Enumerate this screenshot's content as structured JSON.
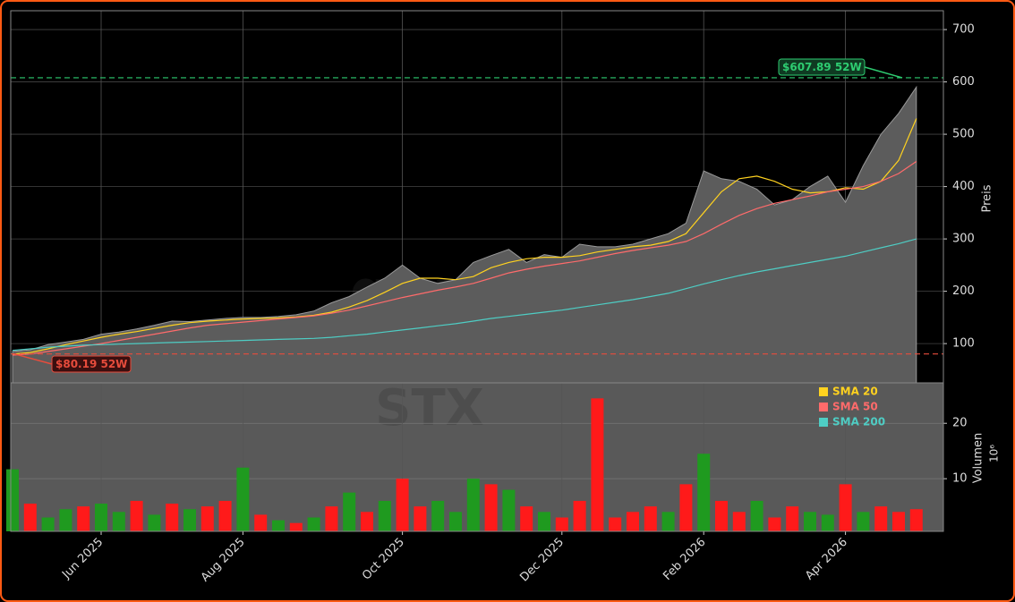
{
  "chart_data": [
    {
      "type": "area",
      "watermark": "gnale.trade",
      "subtitle": "STX",
      "ylabel": "Preis",
      "categories": [
        null,
        null,
        null,
        null,
        null,
        "Jun 2025",
        null,
        null,
        null,
        null,
        null,
        null,
        null,
        "Aug 2025",
        null,
        null,
        null,
        null,
        null,
        null,
        null,
        null,
        "Oct 2025",
        null,
        null,
        null,
        null,
        null,
        null,
        null,
        null,
        "Dec 2025",
        null,
        null,
        null,
        null,
        null,
        null,
        null,
        "Feb 2026",
        null,
        null,
        null,
        null,
        null,
        null,
        null,
        "Apr 2026",
        null,
        null,
        null,
        null
      ],
      "values": [
        85,
        88,
        98,
        103,
        108,
        118,
        122,
        128,
        135,
        143,
        142,
        145,
        148,
        150,
        150,
        152,
        155,
        162,
        178,
        190,
        208,
        225,
        250,
        225,
        215,
        222,
        255,
        268,
        280,
        255,
        270,
        265,
        290,
        285,
        285,
        290,
        300,
        310,
        330,
        430,
        415,
        410,
        395,
        365,
        375,
        400,
        420,
        370,
        440,
        500,
        540,
        590
      ],
      "color": "#5c5c5c",
      "series": [
        {
          "name": "SMA 20",
          "color": "#ffd21f",
          "values": [
            80,
            83,
            90,
            98,
            105,
            112,
            118,
            123,
            129,
            135,
            140,
            143,
            145,
            147,
            148,
            149,
            151,
            154,
            160,
            170,
            182,
            198,
            215,
            225,
            225,
            222,
            228,
            245,
            255,
            262,
            265,
            265,
            268,
            275,
            280,
            285,
            288,
            295,
            310,
            350,
            390,
            415,
            420,
            410,
            395,
            388,
            390,
            398,
            395,
            410,
            450,
            530
          ]
        },
        {
          "name": "SMA 50",
          "color": "#ff6b6b",
          "values": [
            78,
            80,
            85,
            90,
            95,
            100,
            106,
            112,
            118,
            124,
            130,
            135,
            138,
            141,
            144,
            147,
            150,
            153,
            158,
            164,
            172,
            180,
            188,
            195,
            202,
            208,
            215,
            225,
            235,
            242,
            248,
            253,
            258,
            265,
            272,
            278,
            283,
            288,
            295,
            310,
            328,
            345,
            358,
            368,
            375,
            382,
            390,
            395,
            400,
            410,
            425,
            448
          ]
        },
        {
          "name": "SMA 200",
          "color": "#4ecdc4",
          "values": [
            87,
            90,
            93,
            95,
            97,
            98,
            99,
            100,
            101,
            102,
            103,
            104,
            105,
            106,
            107,
            108,
            109,
            110,
            112,
            115,
            118,
            122,
            126,
            130,
            134,
            138,
            143,
            148,
            152,
            156,
            160,
            164,
            169,
            174,
            179,
            184,
            190,
            196,
            205,
            214,
            222,
            230,
            237,
            243,
            249,
            255,
            261,
            267,
            275,
            283,
            291,
            300
          ]
        }
      ],
      "annotations": [
        {
          "text": "$607.89 52W",
          "value": 607.89,
          "color": "#2ecc71"
        },
        {
          "text": "$80.19 52W",
          "value": 80.19,
          "color": "#e74c3c"
        }
      ],
      "ylim": [
        25,
        736
      ],
      "yticks": [
        100,
        200,
        300,
        400,
        500,
        600,
        700
      ],
      "grid": true
    },
    {
      "type": "bar",
      "ylabel": "Volumen",
      "scale_label": "10⁶",
      "categories": [
        null,
        null,
        null,
        null,
        null,
        "Jun 2025",
        null,
        null,
        null,
        null,
        null,
        null,
        null,
        "Aug 2025",
        null,
        null,
        null,
        null,
        null,
        null,
        null,
        null,
        "Oct 2025",
        null,
        null,
        null,
        null,
        null,
        null,
        null,
        null,
        "Dec 2025",
        null,
        null,
        null,
        null,
        null,
        null,
        null,
        "Feb 2026",
        null,
        null,
        null,
        null,
        null,
        null,
        null,
        "Apr 2026",
        null,
        null,
        null,
        null
      ],
      "values": [
        11.7,
        5.5,
        3,
        4.5,
        5,
        5.5,
        4,
        6,
        3.5,
        5.5,
        4.5,
        5,
        6,
        12,
        3.5,
        2.5,
        2,
        3,
        5,
        7.5,
        4,
        6,
        10,
        5,
        6,
        4,
        10,
        9,
        8,
        5,
        4,
        3,
        6,
        24.5,
        3,
        4,
        5,
        4,
        9,
        14.5,
        6,
        4,
        6,
        3,
        5,
        4,
        3.5,
        9,
        4,
        5,
        4,
        4.5
      ],
      "colors": [
        "#1f9a1f",
        "#ff1a1a",
        "#1f9a1f",
        "#1f9a1f",
        "#ff1a1a",
        "#1f9a1f",
        "#1f9a1f",
        "#ff1a1a",
        "#1f9a1f",
        "#ff1a1a",
        "#1f9a1f",
        "#ff1a1a",
        "#ff1a1a",
        "#1f9a1f",
        "#ff1a1a",
        "#1f9a1f",
        "#ff1a1a",
        "#1f9a1f",
        "#ff1a1a",
        "#1f9a1f",
        "#ff1a1a",
        "#1f9a1f",
        "#ff1a1a",
        "#ff1a1a",
        "#1f9a1f",
        "#1f9a1f",
        "#1f9a1f",
        "#ff1a1a",
        "#1f9a1f",
        "#ff1a1a",
        "#1f9a1f",
        "#ff1a1a",
        "#ff1a1a",
        "#ff1a1a",
        "#ff1a1a",
        "#ff1a1a",
        "#ff1a1a",
        "#1f9a1f",
        "#ff1a1a",
        "#1f9a1f",
        "#ff1a1a",
        "#ff1a1a",
        "#1f9a1f",
        "#ff1a1a",
        "#ff1a1a",
        "#1f9a1f",
        "#1f9a1f",
        "#ff1a1a",
        "#1f9a1f",
        "#ff1a1a",
        "#ff1a1a",
        "#ff1a1a"
      ],
      "ylim": [
        0.5,
        27.3
      ],
      "yticks": [
        10,
        20
      ],
      "grid": true
    }
  ]
}
